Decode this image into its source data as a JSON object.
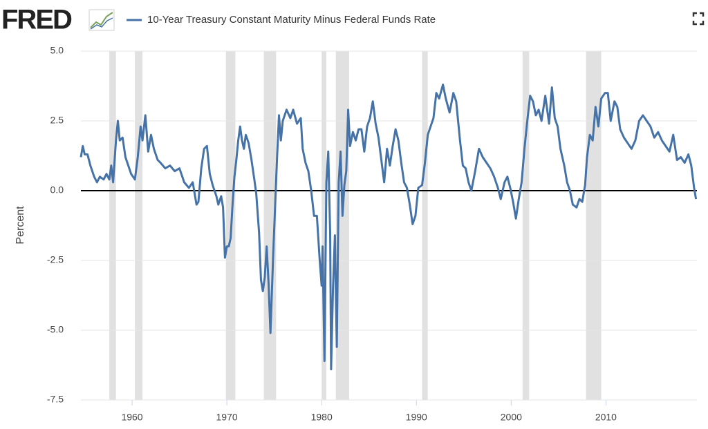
{
  "chart_data": {
    "type": "line",
    "logo": "FRED",
    "ylabel": "Percent",
    "xlim": [
      1954.6,
      2019.6
    ],
    "ylim": [
      -7.5,
      5
    ],
    "xticks": [
      1960,
      1970,
      1980,
      1990,
      2000,
      2010
    ],
    "yticks": [
      -7.5,
      {
        "value": -5,
        "label": "-5.0"
      },
      -2.5,
      {
        "value": 0,
        "label": "0.0"
      },
      2.5,
      {
        "value": 5,
        "label": "5.0"
      }
    ],
    "grid": true,
    "hline": 0,
    "hline_color": "#000000",
    "recession_color": "#e1e1e1",
    "recessions": [
      [
        1957.6,
        1958.3
      ],
      [
        1960.3,
        1961.1
      ],
      [
        1969.9,
        1970.9
      ],
      [
        1973.9,
        1975.2
      ],
      [
        1980.0,
        1980.5
      ],
      [
        1981.5,
        1982.9
      ],
      [
        1990.6,
        1991.2
      ],
      [
        2001.2,
        2001.9
      ],
      [
        2007.9,
        2009.5
      ]
    ],
    "x": [
      1954.6,
      1954.8,
      1955.0,
      1955.3,
      1955.6,
      1956.0,
      1956.3,
      1956.6,
      1957.0,
      1957.3,
      1957.6,
      1957.8,
      1958.0,
      1958.3,
      1958.5,
      1958.7,
      1959.0,
      1959.3,
      1959.6,
      1959.9,
      1960.3,
      1960.6,
      1960.9,
      1961.1,
      1961.4,
      1961.7,
      1962.0,
      1962.3,
      1962.7,
      1963.0,
      1963.5,
      1964.0,
      1964.5,
      1965.0,
      1965.5,
      1966.0,
      1966.4,
      1966.8,
      1967.0,
      1967.3,
      1967.6,
      1967.9,
      1968.2,
      1968.5,
      1968.9,
      1969.1,
      1969.4,
      1969.6,
      1969.8,
      1970.0,
      1970.2,
      1970.4,
      1970.6,
      1970.8,
      1971.0,
      1971.2,
      1971.4,
      1971.6,
      1971.8,
      1972.0,
      1972.3,
      1972.6,
      1972.9,
      1973.1,
      1973.4,
      1973.6,
      1973.8,
      1974.0,
      1974.2,
      1974.4,
      1974.6,
      1974.9,
      1975.1,
      1975.3,
      1975.5,
      1975.7,
      1975.9,
      1976.3,
      1976.7,
      1977.0,
      1977.4,
      1977.8,
      1978.0,
      1978.3,
      1978.6,
      1978.9,
      1979.2,
      1979.5,
      1979.8,
      1980.0,
      1980.1,
      1980.3,
      1980.5,
      1980.7,
      1980.9,
      1981.0,
      1981.2,
      1981.4,
      1981.6,
      1981.8,
      1982.0,
      1982.2,
      1982.4,
      1982.6,
      1982.8,
      1983.0,
      1983.3,
      1983.6,
      1983.9,
      1984.2,
      1984.5,
      1984.8,
      1985.1,
      1985.4,
      1985.7,
      1986.0,
      1986.3,
      1986.6,
      1986.9,
      1987.2,
      1987.5,
      1987.8,
      1988.1,
      1988.4,
      1988.7,
      1989.0,
      1989.3,
      1989.6,
      1989.9,
      1990.2,
      1990.6,
      1990.9,
      1991.2,
      1991.5,
      1991.8,
      1992.1,
      1992.4,
      1992.8,
      1993.1,
      1993.5,
      1993.9,
      1994.2,
      1994.6,
      1994.9,
      1995.2,
      1995.5,
      1995.8,
      1996.2,
      1996.6,
      1997.0,
      1997.4,
      1997.8,
      1998.2,
      1998.6,
      1998.9,
      1999.3,
      1999.6,
      1999.9,
      2000.2,
      2000.5,
      2000.8,
      2001.1,
      2001.4,
      2001.7,
      2002.0,
      2002.3,
      2002.6,
      2002.9,
      2003.2,
      2003.6,
      2004.0,
      2004.3,
      2004.6,
      2004.9,
      2005.2,
      2005.6,
      2005.9,
      2006.2,
      2006.5,
      2006.9,
      2007.2,
      2007.5,
      2007.8,
      2008.0,
      2008.3,
      2008.6,
      2008.9,
      2009.2,
      2009.5,
      2009.9,
      2010.2,
      2010.5,
      2010.9,
      2011.2,
      2011.5,
      2011.9,
      2012.3,
      2012.7,
      2013.1,
      2013.5,
      2013.9,
      2014.3,
      2014.7,
      2015.1,
      2015.5,
      2015.9,
      2016.3,
      2016.7,
      2017.1,
      2017.5,
      2017.9,
      2018.3,
      2018.7,
      2019.0,
      2019.3,
      2019.5
    ],
    "series": [
      {
        "name": "10-Year Treasury Constant Maturity Minus Federal Funds Rate",
        "color": "#4572a7",
        "values": [
          1.2,
          1.6,
          1.3,
          1.3,
          0.9,
          0.5,
          0.3,
          0.5,
          0.4,
          0.6,
          0.4,
          0.9,
          0.3,
          1.8,
          2.5,
          1.8,
          1.9,
          1.2,
          0.9,
          0.6,
          0.4,
          1.2,
          2.3,
          1.8,
          2.7,
          1.4,
          2.0,
          1.5,
          1.1,
          1.0,
          0.8,
          0.9,
          0.7,
          0.8,
          0.3,
          0.1,
          0.3,
          -0.5,
          -0.4,
          0.8,
          1.5,
          1.6,
          0.6,
          0.2,
          -0.2,
          -0.5,
          -0.2,
          -0.6,
          -2.4,
          -2.0,
          -2.0,
          -1.7,
          -0.5,
          0.5,
          1.1,
          1.8,
          2.3,
          1.8,
          1.5,
          2.0,
          1.7,
          1.1,
          0.4,
          -0.1,
          -1.5,
          -3.2,
          -3.6,
          -3.1,
          -2.0,
          -3.3,
          -5.1,
          -2.2,
          -0.5,
          1.2,
          2.7,
          1.8,
          2.5,
          2.9,
          2.6,
          2.9,
          2.4,
          2.6,
          1.5,
          1.0,
          0.7,
          0.0,
          -0.9,
          -0.9,
          -2.5,
          -3.4,
          -2.0,
          -6.1,
          0.3,
          1.4,
          -1.5,
          -6.4,
          -3.5,
          -1.6,
          -5.6,
          0.3,
          1.4,
          -0.9,
          0.2,
          0.7,
          2.9,
          1.6,
          2.1,
          1.8,
          2.2,
          2.2,
          1.4,
          2.3,
          2.6,
          3.2,
          2.4,
          1.9,
          1.1,
          0.3,
          1.5,
          0.9,
          1.6,
          2.2,
          1.8,
          1.0,
          0.3,
          0.1,
          -0.5,
          -1.2,
          -0.9,
          0.1,
          0.2,
          1.0,
          2.0,
          2.3,
          2.6,
          3.5,
          3.3,
          3.8,
          3.3,
          2.8,
          3.5,
          3.2,
          1.8,
          0.9,
          0.8,
          0.3,
          0.0,
          0.7,
          1.5,
          1.2,
          1.0,
          0.8,
          0.5,
          0.1,
          -0.3,
          0.3,
          0.5,
          0.1,
          -0.4,
          -1.0,
          -0.3,
          0.3,
          1.5,
          2.5,
          3.4,
          3.2,
          2.7,
          2.9,
          2.5,
          3.4,
          2.4,
          3.7,
          2.6,
          2.3,
          1.5,
          0.9,
          0.3,
          0.0,
          -0.5,
          -0.6,
          -0.3,
          -0.4,
          0.2,
          1.2,
          2.0,
          1.8,
          3.0,
          2.3,
          3.3,
          3.5,
          3.5,
          2.5,
          3.2,
          3.0,
          2.2,
          1.9,
          1.7,
          1.5,
          1.8,
          2.5,
          2.7,
          2.5,
          2.3,
          1.9,
          2.1,
          1.8,
          1.6,
          1.4,
          2.0,
          1.1,
          1.2,
          1.0,
          1.3,
          0.9,
          0.1,
          -0.3
        ]
      }
    ]
  }
}
